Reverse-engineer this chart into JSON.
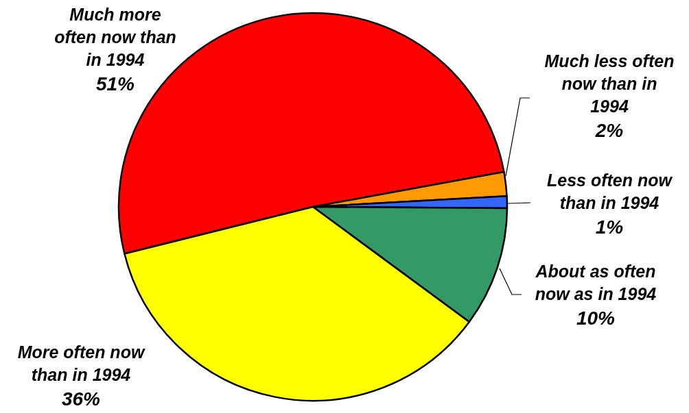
{
  "chart_data": {
    "type": "pie",
    "categories": [
      "Much more often now than in 1994",
      "Much less often now than in 1994",
      "Less often now than in 1994",
      "About as often now as in 1994",
      "More often now than in 1994"
    ],
    "values": [
      51,
      2,
      1,
      10,
      36
    ],
    "value_labels": [
      "51%",
      "2%",
      "1%",
      "10%",
      "36%"
    ],
    "colors": [
      "#ff0000",
      "#ff9900",
      "#3366ff",
      "#339966",
      "#ffff00"
    ]
  }
}
